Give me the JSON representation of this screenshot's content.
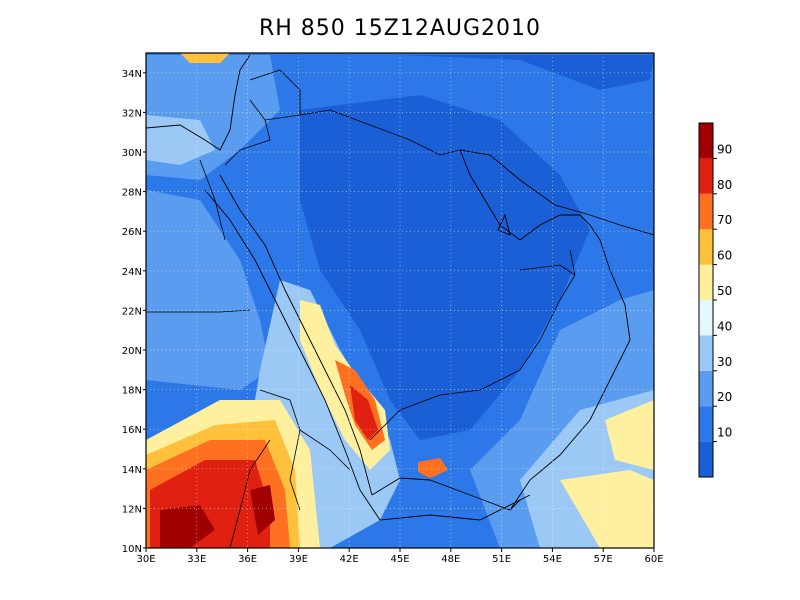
{
  "title": "RH 850 15Z12AUG2010",
  "variable": "RH",
  "level": "850",
  "valid_time": "15Z12AUG2010",
  "map": {
    "lon_range": [
      30,
      60
    ],
    "lat_range": [
      10,
      35
    ],
    "x_ticks": [
      "30E",
      "33E",
      "36E",
      "39E",
      "42E",
      "45E",
      "48E",
      "51E",
      "54E",
      "57E",
      "60E"
    ],
    "y_ticks": [
      "10N",
      "12N",
      "14N",
      "16N",
      "18N",
      "20N",
      "22N",
      "24N",
      "26N",
      "28N",
      "30N",
      "32N",
      "34N"
    ],
    "grid": true
  },
  "colorbar": {
    "labels": [
      "10",
      "20",
      "30",
      "40",
      "50",
      "60",
      "70",
      "80",
      "90"
    ],
    "colors": [
      "#1a5fd6",
      "#2d78e8",
      "#5a9cf0",
      "#9cc8f5",
      "#e4f8ff",
      "#fff0a0",
      "#ffc03c",
      "#ff7020",
      "#e02010",
      "#a00000"
    ]
  },
  "field_regions": [
    {
      "name": "background-band",
      "color": "#2d78e8"
    },
    {
      "name": "dry-core",
      "color": "#1a5fd6"
    },
    {
      "name": "moist-southwest",
      "color": "#ff7020"
    },
    {
      "name": "very-moist-sudan",
      "color": "#e02010"
    },
    {
      "name": "yemen-highlands",
      "color": "#ff7020"
    }
  ]
}
